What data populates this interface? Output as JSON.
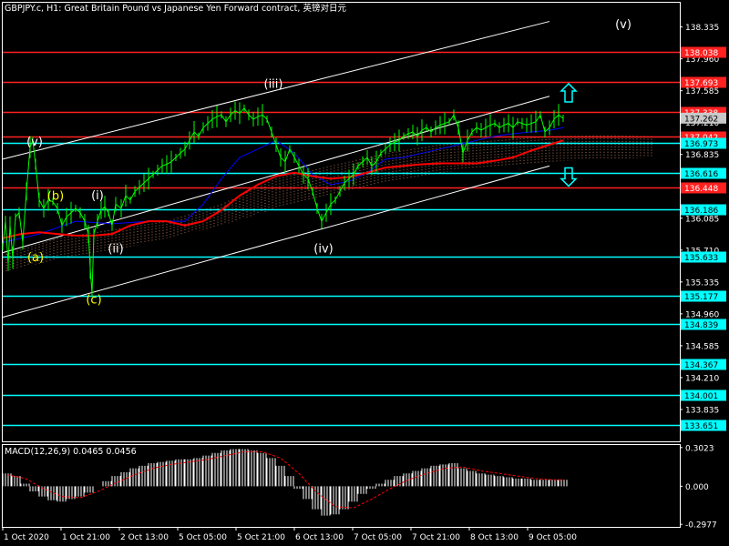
{
  "chart_title": "GBPJPY.c, H1:  Great Britain Pound vs Japanese Yen Forward contract, 英镑对日元",
  "colors": {
    "background": "#000000",
    "frame": "#ffffff",
    "grid": "#5a5a5a",
    "price": "#00ff00",
    "red_line": "#ff2020",
    "cyan_line": "#00ffff",
    "kijun": "#ff0000",
    "tenkan": "#0000ff",
    "chikou": "#55dd55",
    "cloud": "#c08060",
    "channel": "#ffffff",
    "wave_white": "#ffffff",
    "wave_yellow": "#ffff00",
    "macd_hist": "#ffffff",
    "macd_signal": "#ff0000",
    "current_price_bg": "#c8c8c8"
  },
  "chart_data": {
    "type": "line",
    "symbol": "GBPJPY.c",
    "timeframe": "H1",
    "time_labels": [
      "1 Oct 2020",
      "1 Oct 21:00",
      "2 Oct 13:00",
      "5 Oct 05:00",
      "5 Oct 21:00",
      "6 Oct 13:00",
      "7 Oct 05:00",
      "7 Oct 21:00",
      "8 Oct 13:00",
      "9 Oct 05:00"
    ],
    "price_ticks": [
      "138.335",
      "137.960",
      "137.585",
      "137.210",
      "136.835",
      "136.460",
      "136.085",
      "135.710",
      "135.335",
      "134.960",
      "134.585",
      "134.210",
      "133.835"
    ],
    "ylim": [
      133.46,
      138.62
    ],
    "close": [
      [
        0,
        135.75
      ],
      [
        3,
        136.05
      ],
      [
        6,
        135.55
      ],
      [
        8,
        136.0
      ],
      [
        11,
        135.62
      ],
      [
        14,
        136.1
      ],
      [
        18,
        136.15
      ],
      [
        22,
        135.8
      ],
      [
        26,
        136.4
      ],
      [
        30,
        136.92
      ],
      [
        33,
        137.0
      ],
      [
        36,
        136.72
      ],
      [
        40,
        136.3
      ],
      [
        45,
        136.2
      ],
      [
        50,
        136.3
      ],
      [
        55,
        136.28
      ],
      [
        60,
        136.2
      ],
      [
        65,
        136.0
      ],
      [
        70,
        136.1
      ],
      [
        75,
        136.15
      ],
      [
        80,
        136.2
      ],
      [
        85,
        136.15
      ],
      [
        90,
        136.05
      ],
      [
        94,
        135.9
      ],
      [
        96,
        135.5
      ],
      [
        98,
        135.2
      ],
      [
        100,
        135.9
      ],
      [
        104,
        136.05
      ],
      [
        108,
        136.18
      ],
      [
        112,
        136.22
      ],
      [
        116,
        136.15
      ],
      [
        120,
        136.0
      ],
      [
        124,
        136.25
      ],
      [
        130,
        136.2
      ],
      [
        135,
        136.35
      ],
      [
        140,
        136.3
      ],
      [
        145,
        136.4
      ],
      [
        150,
        136.45
      ],
      [
        155,
        136.5
      ],
      [
        160,
        136.55
      ],
      [
        165,
        136.6
      ],
      [
        170,
        136.65
      ],
      [
        175,
        136.7
      ],
      [
        180,
        136.72
      ],
      [
        185,
        136.75
      ],
      [
        190,
        136.8
      ],
      [
        195,
        136.85
      ],
      [
        200,
        136.9
      ],
      [
        205,
        137.0
      ],
      [
        210,
        137.1
      ],
      [
        215,
        137.05
      ],
      [
        220,
        137.15
      ],
      [
        225,
        137.2
      ],
      [
        230,
        137.25
      ],
      [
        235,
        137.28
      ],
      [
        240,
        137.3
      ],
      [
        245,
        137.22
      ],
      [
        250,
        137.3
      ],
      [
        255,
        137.35
      ],
      [
        260,
        137.32
      ],
      [
        265,
        137.38
      ],
      [
        270,
        137.3
      ],
      [
        275,
        137.25
      ],
      [
        280,
        137.28
      ],
      [
        285,
        137.3
      ],
      [
        290,
        137.25
      ],
      [
        295,
        137.1
      ],
      [
        300,
        136.95
      ],
      [
        305,
        136.8
      ],
      [
        310,
        136.75
      ],
      [
        315,
        136.9
      ],
      [
        320,
        136.8
      ],
      [
        325,
        136.7
      ],
      [
        330,
        136.6
      ],
      [
        335,
        136.55
      ],
      [
        340,
        136.4
      ],
      [
        345,
        136.2
      ],
      [
        350,
        136.05
      ],
      [
        355,
        136.15
      ],
      [
        360,
        136.25
      ],
      [
        365,
        136.3
      ],
      [
        370,
        136.4
      ],
      [
        375,
        136.5
      ],
      [
        380,
        136.55
      ],
      [
        385,
        136.6
      ],
      [
        390,
        136.7
      ],
      [
        395,
        136.75
      ],
      [
        400,
        136.8
      ],
      [
        405,
        136.7
      ],
      [
        410,
        136.75
      ],
      [
        415,
        136.85
      ],
      [
        420,
        136.9
      ],
      [
        425,
        136.95
      ],
      [
        430,
        136.98
      ],
      [
        435,
        137.0
      ],
      [
        440,
        137.05
      ],
      [
        445,
        137.08
      ],
      [
        450,
        137.1
      ],
      [
        455,
        137.05
      ],
      [
        460,
        137.12
      ],
      [
        465,
        137.15
      ],
      [
        470,
        137.1
      ],
      [
        475,
        137.15
      ],
      [
        480,
        137.18
      ],
      [
        485,
        137.2
      ],
      [
        490,
        137.22
      ],
      [
        495,
        137.3
      ],
      [
        500,
        137.15
      ],
      [
        505,
        136.85
      ],
      [
        510,
        137.0
      ],
      [
        515,
        137.1
      ],
      [
        520,
        137.15
      ],
      [
        525,
        137.12
      ],
      [
        530,
        137.15
      ],
      [
        535,
        137.18
      ],
      [
        540,
        137.2
      ],
      [
        545,
        137.15
      ],
      [
        550,
        137.18
      ],
      [
        555,
        137.2
      ],
      [
        560,
        137.15
      ],
      [
        565,
        137.22
      ],
      [
        570,
        137.2
      ],
      [
        575,
        137.18
      ],
      [
        580,
        137.2
      ],
      [
        585,
        137.22
      ],
      [
        590,
        137.3
      ],
      [
        595,
        137.1
      ],
      [
        600,
        137.15
      ],
      [
        605,
        137.25
      ],
      [
        610,
        137.3
      ],
      [
        615,
        137.26
      ]
    ],
    "kijun_sen": [
      [
        0,
        135.85
      ],
      [
        20,
        135.9
      ],
      [
        40,
        135.92
      ],
      [
        60,
        135.9
      ],
      [
        80,
        135.88
      ],
      [
        100,
        135.88
      ],
      [
        120,
        135.9
      ],
      [
        140,
        136.0
      ],
      [
        160,
        136.05
      ],
      [
        180,
        136.05
      ],
      [
        200,
        136.0
      ],
      [
        220,
        136.05
      ],
      [
        240,
        136.18
      ],
      [
        260,
        136.35
      ],
      [
        280,
        136.48
      ],
      [
        300,
        136.58
      ],
      [
        320,
        136.62
      ],
      [
        340,
        136.58
      ],
      [
        360,
        136.55
      ],
      [
        380,
        136.57
      ],
      [
        400,
        136.62
      ],
      [
        420,
        136.68
      ],
      [
        440,
        136.7
      ],
      [
        460,
        136.72
      ],
      [
        480,
        136.73
      ],
      [
        500,
        136.73
      ],
      [
        520,
        136.73
      ],
      [
        540,
        136.76
      ],
      [
        560,
        136.8
      ],
      [
        580,
        136.88
      ],
      [
        600,
        136.95
      ],
      [
        615,
        137.0
      ]
    ],
    "tenkan_sen": [
      [
        0,
        135.8
      ],
      [
        40,
        135.9
      ],
      [
        80,
        136.05
      ],
      [
        120,
        136.02
      ],
      [
        160,
        136.05
      ],
      [
        200,
        136.05
      ],
      [
        220,
        136.25
      ],
      [
        240,
        136.55
      ],
      [
        260,
        136.8
      ],
      [
        280,
        136.9
      ],
      [
        300,
        137.0
      ],
      [
        320,
        136.85
      ],
      [
        340,
        136.6
      ],
      [
        360,
        136.48
      ],
      [
        380,
        136.52
      ],
      [
        400,
        136.62
      ],
      [
        420,
        136.78
      ],
      [
        440,
        136.8
      ],
      [
        460,
        136.85
      ],
      [
        480,
        136.9
      ],
      [
        500,
        136.95
      ],
      [
        520,
        137.0
      ],
      [
        540,
        137.05
      ],
      [
        560,
        137.08
      ],
      [
        580,
        137.1
      ],
      [
        600,
        137.12
      ],
      [
        615,
        137.15
      ]
    ],
    "cloud_span_a": [
      [
        0,
        135.65
      ],
      [
        60,
        135.85
      ],
      [
        120,
        135.95
      ],
      [
        180,
        136.05
      ],
      [
        240,
        136.25
      ],
      [
        300,
        136.55
      ],
      [
        360,
        136.7
      ],
      [
        420,
        136.85
      ],
      [
        480,
        136.95
      ],
      [
        540,
        137.0
      ],
      [
        600,
        137.05
      ],
      [
        660,
        137.06
      ],
      [
        720,
        137.05
      ]
    ],
    "cloud_span_b": [
      [
        0,
        135.45
      ],
      [
        60,
        135.6
      ],
      [
        120,
        135.7
      ],
      [
        180,
        135.85
      ],
      [
        240,
        136.0
      ],
      [
        300,
        136.2
      ],
      [
        360,
        136.35
      ],
      [
        420,
        136.5
      ],
      [
        480,
        136.62
      ],
      [
        540,
        136.7
      ],
      [
        600,
        136.75
      ],
      [
        660,
        136.78
      ],
      [
        720,
        136.8
      ]
    ],
    "red_levels": [
      "138.038",
      "137.693",
      "137.338",
      "137.042",
      "136.448"
    ],
    "cyan_levels": [
      "136.973",
      "136.616",
      "136.186",
      "135.633",
      "135.177",
      "134.839",
      "134.367",
      "134.001",
      "133.651"
    ],
    "current_price": "137.262",
    "channel_lines": [
      {
        "name": "upper",
        "p1": [
          0,
          136.78
        ],
        "p2": [
          600,
          138.4
        ]
      },
      {
        "name": "middle",
        "p1": [
          0,
          135.68
        ],
        "p2": [
          600,
          137.52
        ]
      },
      {
        "name": "lower",
        "p1": [
          0,
          134.92
        ],
        "p2": [
          600,
          136.7
        ]
      }
    ],
    "wave_labels": [
      {
        "text": "(v)",
        "t": 35,
        "price": 136.94,
        "color": "yellow_white"
      },
      {
        "text": "(b)",
        "t": 58,
        "price": 136.3,
        "color": "yellow"
      },
      {
        "text": "(a)",
        "t": 36,
        "price": 135.58,
        "color": "yellow"
      },
      {
        "text": "(i)",
        "t": 104,
        "price": 136.31,
        "color": "white"
      },
      {
        "text": "(ii)",
        "t": 124,
        "price": 135.68,
        "color": "white"
      },
      {
        "text": "(c)",
        "t": 100,
        "price": 135.08,
        "color": "yellow"
      },
      {
        "text": "(iii)",
        "t": 297,
        "price": 137.62,
        "color": "white"
      },
      {
        "text": "(iv)",
        "t": 352,
        "price": 135.68,
        "color": "white"
      },
      {
        "text": "(v)",
        "t": 681,
        "price": 138.32,
        "color": "white"
      }
    ],
    "arrows": [
      {
        "direction": "up",
        "t": 621,
        "price": 137.55
      },
      {
        "direction": "down",
        "t": 621,
        "price": 136.58
      }
    ],
    "macd": {
      "label": "MACD(12,26,9) 0.0465 0.0456",
      "ticks": [
        "0.3023",
        "0.000",
        "-0.2977"
      ],
      "ylim": [
        -0.3177,
        0.3223
      ],
      "histogram": [
        [
          5,
          0.1
        ],
        [
          15,
          0.08
        ],
        [
          25,
          0.02
        ],
        [
          35,
          -0.04
        ],
        [
          45,
          -0.08
        ],
        [
          55,
          -0.11
        ],
        [
          65,
          -0.12
        ],
        [
          75,
          -0.1
        ],
        [
          85,
          -0.08
        ],
        [
          95,
          -0.05
        ],
        [
          105,
          0.0
        ],
        [
          115,
          0.04
        ],
        [
          125,
          0.08
        ],
        [
          135,
          0.11
        ],
        [
          145,
          0.14
        ],
        [
          155,
          0.16
        ],
        [
          165,
          0.18
        ],
        [
          175,
          0.19
        ],
        [
          185,
          0.2
        ],
        [
          195,
          0.21
        ],
        [
          205,
          0.21
        ],
        [
          215,
          0.22
        ],
        [
          225,
          0.24
        ],
        [
          235,
          0.26
        ],
        [
          245,
          0.28
        ],
        [
          255,
          0.29
        ],
        [
          265,
          0.29
        ],
        [
          275,
          0.28
        ],
        [
          285,
          0.26
        ],
        [
          295,
          0.22
        ],
        [
          305,
          0.16
        ],
        [
          315,
          0.08
        ],
        [
          325,
          -0.02
        ],
        [
          335,
          -0.1
        ],
        [
          345,
          -0.18
        ],
        [
          355,
          -0.23
        ],
        [
          365,
          -0.22
        ],
        [
          375,
          -0.18
        ],
        [
          385,
          -0.12
        ],
        [
          395,
          -0.06
        ],
        [
          405,
          -0.02
        ],
        [
          415,
          0.02
        ],
        [
          425,
          0.05
        ],
        [
          435,
          0.08
        ],
        [
          445,
          0.1
        ],
        [
          455,
          0.12
        ],
        [
          465,
          0.14
        ],
        [
          475,
          0.16
        ],
        [
          485,
          0.17
        ],
        [
          495,
          0.18
        ],
        [
          505,
          0.14
        ],
        [
          515,
          0.12
        ],
        [
          525,
          0.1
        ],
        [
          535,
          0.09
        ],
        [
          545,
          0.08
        ],
        [
          555,
          0.07
        ],
        [
          565,
          0.06
        ],
        [
          575,
          0.06
        ],
        [
          585,
          0.05
        ],
        [
          595,
          0.05
        ],
        [
          605,
          0.05
        ],
        [
          615,
          0.05
        ]
      ],
      "signal": [
        [
          5,
          0.09
        ],
        [
          25,
          0.06
        ],
        [
          45,
          -0.02
        ],
        [
          65,
          -0.08
        ],
        [
          85,
          -0.09
        ],
        [
          105,
          -0.04
        ],
        [
          125,
          0.03
        ],
        [
          145,
          0.09
        ],
        [
          165,
          0.14
        ],
        [
          185,
          0.17
        ],
        [
          205,
          0.19
        ],
        [
          225,
          0.21
        ],
        [
          245,
          0.24
        ],
        [
          265,
          0.27
        ],
        [
          285,
          0.27
        ],
        [
          305,
          0.22
        ],
        [
          325,
          0.1
        ],
        [
          345,
          -0.05
        ],
        [
          365,
          -0.16
        ],
        [
          385,
          -0.17
        ],
        [
          405,
          -0.1
        ],
        [
          425,
          -0.02
        ],
        [
          445,
          0.05
        ],
        [
          465,
          0.1
        ],
        [
          485,
          0.14
        ],
        [
          505,
          0.15
        ],
        [
          525,
          0.12
        ],
        [
          545,
          0.1
        ],
        [
          565,
          0.08
        ],
        [
          585,
          0.06
        ],
        [
          605,
          0.05
        ],
        [
          615,
          0.05
        ]
      ]
    }
  }
}
